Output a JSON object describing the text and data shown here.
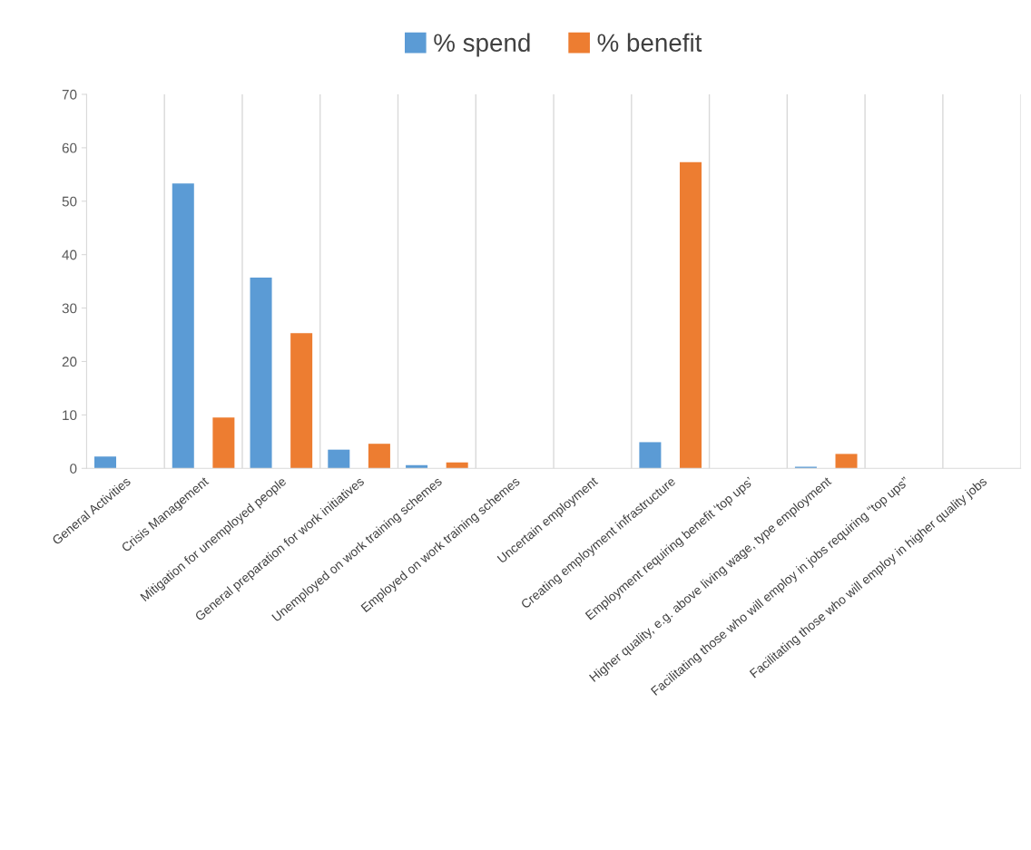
{
  "chart_data": {
    "type": "bar",
    "categories": [
      "General Activities",
      "Crisis Management",
      "Mitigation for unemployed people",
      "General preparation for work initiatives",
      "Unemployed on work training schemes",
      "Employed on work training schemes",
      "Uncertain employment",
      "Creating employment infrastructure",
      "Employment requiring benefit ‘top ups’",
      "Higher quality, e.g. above living wage, type employment",
      "Facilitating those who will employ in jobs requiring “top ups”",
      "Facilitating those who will employ in higher quality jobs"
    ],
    "series": [
      {
        "name": "% spend",
        "color": "#5b9bd5",
        "values": [
          2.2,
          53.3,
          35.7,
          3.5,
          0.6,
          0,
          0,
          4.9,
          0,
          0.3,
          0,
          0
        ]
      },
      {
        "name": "% benefit",
        "color": "#ed7d31",
        "values": [
          0,
          9.5,
          25.3,
          4.6,
          1.1,
          0,
          0,
          57.3,
          0,
          2.7,
          0,
          0
        ]
      }
    ],
    "ylim": [
      0,
      70
    ],
    "yticks": [
      0,
      10,
      20,
      30,
      40,
      50,
      60,
      70
    ],
    "grid": "x",
    "legend": "top"
  }
}
